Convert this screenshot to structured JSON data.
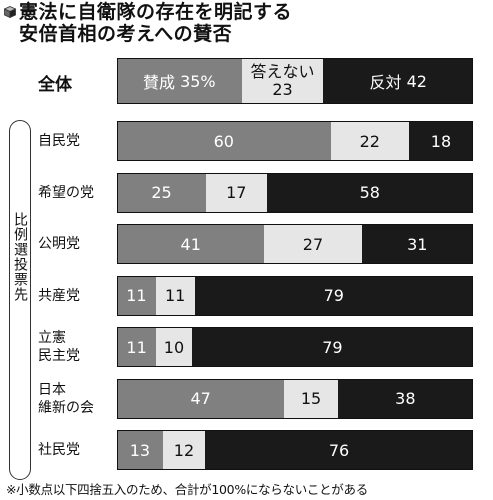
{
  "title": {
    "line1": "憲法に自衛隊の存在を明記する",
    "line2": "安倍首相の考えへの賛否"
  },
  "colors": {
    "for": "#808080",
    "neutral": "#e6e6e6",
    "against": "#1a1a1a"
  },
  "chart_data": {
    "type": "bar",
    "orientation": "horizontal",
    "stacked": true,
    "title": "憲法に自衛隊の存在を明記する 安倍首相の考えへの賛否",
    "overall": {
      "label": "全体",
      "for": {
        "name": "賛成",
        "value": 35,
        "unit": "%"
      },
      "neutral": {
        "name": "答えない",
        "value": 23
      },
      "against": {
        "name": "反対",
        "value": 42
      }
    },
    "group_label": "比例選投票先",
    "categories": [
      "自民党",
      "希望の党",
      "公明党",
      "共産党",
      "立憲民主党",
      "日本維新の会",
      "社民党"
    ],
    "category_lines": [
      [
        "自民党"
      ],
      [
        "希望の党"
      ],
      [
        "公明党"
      ],
      [
        "共産党"
      ],
      [
        "立憲",
        "民主党"
      ],
      [
        "日本",
        "維新の会"
      ],
      [
        "社民党"
      ]
    ],
    "series": [
      {
        "values": [
          60,
          25,
          41,
          11,
          11,
          47,
          13
        ]
      },
      {
        "values": [
          22,
          17,
          27,
          11,
          10,
          15,
          12
        ]
      },
      {
        "values": [
          18,
          58,
          31,
          79,
          79,
          38,
          76
        ]
      }
    ]
  },
  "footnote": "※小数点以下四捨五入のため、合計が100%にならないことがある"
}
